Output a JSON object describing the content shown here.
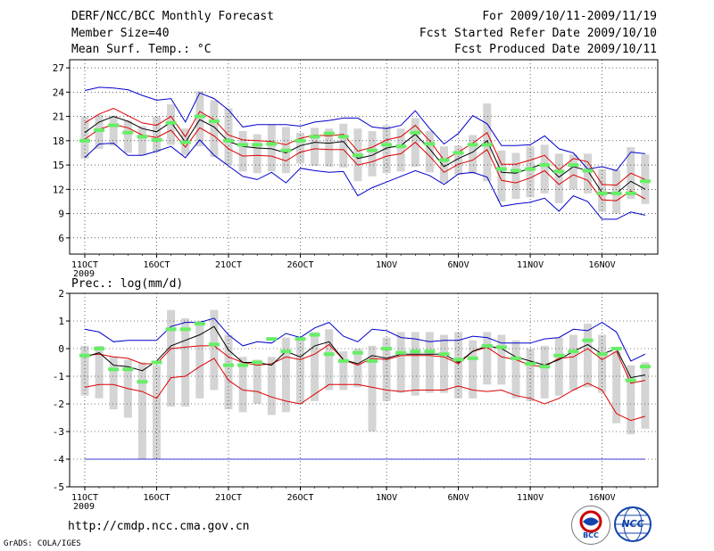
{
  "header": {
    "title": "DERF/NCC/BCC Monthly Forecast",
    "member": "Member Size=40",
    "variable": "Mean Surf. Temp.: °C",
    "period": "For 2009/10/11-2009/11/19",
    "started": "Fcst Started Refer Date 2009/10/10",
    "produced": "Fcst Produced Date 2009/10/11"
  },
  "footer": {
    "url": "http://cmdp.ncc.cma.gov.cn",
    "grads": "GrADS: COLA/IGES"
  },
  "logos": {
    "left": "BCC",
    "right": "NCC"
  },
  "colors": {
    "box": "#d4d4d4",
    "mean": "#66ee66",
    "envelope": "#0000cc",
    "percentile": "#dd0000",
    "ensemble": "#000000",
    "grid": "#000000"
  },
  "chart_data": [
    {
      "type": "line",
      "title": "Mean Surf. Temp.: °C",
      "ylim": [
        4,
        28
      ],
      "yticks": [
        6,
        9,
        12,
        15,
        18,
        21,
        24,
        27
      ],
      "x_start_day": 1,
      "x_end_day": 40,
      "xticks": [
        {
          "day": 1,
          "label": "11OCT",
          "sub": "2009"
        },
        {
          "day": 6,
          "label": "16OCT",
          "sub": ""
        },
        {
          "day": 11,
          "label": "21OCT",
          "sub": ""
        },
        {
          "day": 16,
          "label": "26OCT",
          "sub": ""
        },
        {
          "day": 22,
          "label": "1NOV",
          "sub": ""
        },
        {
          "day": 27,
          "label": "6NOV",
          "sub": ""
        },
        {
          "day": 32,
          "label": "11NOV",
          "sub": ""
        },
        {
          "day": 37,
          "label": "16NOV",
          "sub": ""
        }
      ],
      "series": [
        {
          "name": "max",
          "color": "#0000cc",
          "values": [
            24.2,
            24.6,
            24.5,
            24.3,
            23.6,
            23.0,
            23.2,
            20.3,
            23.9,
            23.2,
            21.8,
            19.7,
            20.0,
            20.0,
            20.0,
            19.8,
            20.3,
            20.5,
            20.8,
            20.8,
            19.7,
            19.5,
            19.9,
            21.7,
            19.5,
            17.6,
            18.9,
            21.1,
            20.1,
            17.4,
            17.4,
            17.5,
            18.6,
            17.0,
            16.5,
            14.5,
            14.8,
            14.3,
            16.6,
            16.4
          ]
        },
        {
          "name": "p75",
          "color": "#dd0000",
          "values": [
            20.2,
            21.3,
            22.0,
            21.1,
            20.2,
            19.9,
            21.0,
            18.5,
            21.6,
            20.6,
            18.7,
            18.1,
            18.0,
            17.9,
            17.5,
            18.3,
            18.7,
            18.6,
            18.8,
            16.7,
            17.2,
            18.1,
            18.5,
            19.9,
            18.0,
            15.6,
            16.6,
            17.7,
            19.0,
            15.1,
            15.1,
            15.6,
            16.2,
            14.4,
            15.8,
            15.4,
            12.6,
            12.5,
            14.0,
            13.2
          ]
        },
        {
          "name": "mean",
          "color": "#000000",
          "values": [
            19.0,
            20.3,
            21.0,
            20.4,
            19.5,
            19.1,
            20.3,
            17.8,
            20.6,
            19.7,
            17.9,
            17.3,
            17.1,
            17.0,
            16.5,
            17.4,
            17.8,
            17.7,
            17.9,
            15.8,
            16.2,
            17.1,
            17.4,
            18.8,
            17.0,
            14.8,
            15.8,
            16.6,
            18.0,
            14.1,
            14.0,
            14.6,
            15.2,
            13.5,
            14.8,
            14.3,
            11.6,
            11.5,
            13.0,
            12.0
          ]
        },
        {
          "name": "p25",
          "color": "#dd0000",
          "values": [
            18.2,
            19.4,
            20.0,
            19.6,
            18.7,
            18.4,
            19.3,
            17.2,
            19.6,
            18.6,
            17.0,
            16.1,
            16.2,
            16.1,
            15.5,
            16.6,
            17.0,
            16.9,
            16.9,
            15.0,
            15.4,
            16.1,
            16.4,
            17.8,
            16.1,
            14.1,
            15.1,
            15.6,
            16.9,
            13.1,
            12.8,
            13.4,
            14.3,
            12.6,
            13.8,
            13.1,
            10.7,
            10.6,
            11.8,
            10.8
          ]
        },
        {
          "name": "min",
          "color": "#0000cc",
          "values": [
            15.9,
            17.6,
            17.7,
            16.2,
            16.2,
            16.7,
            17.3,
            15.9,
            18.1,
            16.2,
            14.9,
            13.6,
            13.2,
            14.1,
            12.8,
            14.6,
            14.3,
            14.1,
            14.2,
            11.2,
            12.2,
            12.9,
            13.6,
            14.3,
            13.7,
            12.6,
            13.9,
            14.1,
            13.5,
            9.9,
            10.2,
            10.4,
            10.9,
            9.3,
            11.2,
            10.5,
            8.3,
            8.3,
            9.2,
            8.8
          ]
        }
      ],
      "mean_marks": [
        18.0,
        19.3,
        19.9,
        19.0,
        18.5,
        18.1,
        20.2,
        17.8,
        21.0,
        20.4,
        18.0,
        17.5,
        17.5,
        17.6,
        16.8,
        18.0,
        18.5,
        18.9,
        18.5,
        16.2,
        16.8,
        17.5,
        17.3,
        19.0,
        17.6,
        15.6,
        16.5,
        17.5,
        17.5,
        14.5,
        14.3,
        14.5,
        15.0,
        14.2,
        15.0,
        14.3,
        11.5,
        11.5,
        11.5,
        13.0
      ],
      "boxes": [
        {
          "day": 1,
          "lo": 15.8,
          "hi": 21.0
        },
        {
          "day": 2,
          "lo": 17.0,
          "hi": 21.2
        },
        {
          "day": 3,
          "lo": 17.4,
          "hi": 21.1
        },
        {
          "day": 4,
          "lo": 16.5,
          "hi": 20.5
        },
        {
          "day": 5,
          "lo": 16.2,
          "hi": 19.8
        },
        {
          "day": 6,
          "lo": 16.6,
          "hi": 21.0
        },
        {
          "day": 7,
          "lo": 17.5,
          "hi": 22.5
        },
        {
          "day": 8,
          "lo": 16.2,
          "hi": 19.5
        },
        {
          "day": 9,
          "lo": 17.3,
          "hi": 24.1
        },
        {
          "day": 10,
          "lo": 16.0,
          "hi": 23.0
        },
        {
          "day": 11,
          "lo": 15.0,
          "hi": 22.0
        },
        {
          "day": 12,
          "lo": 14.2,
          "hi": 19.2
        },
        {
          "day": 13,
          "lo": 14.0,
          "hi": 18.8
        },
        {
          "day": 14,
          "lo": 14.2,
          "hi": 20.0
        },
        {
          "day": 15,
          "lo": 14.0,
          "hi": 19.7
        },
        {
          "day": 16,
          "lo": 15.2,
          "hi": 19.0
        },
        {
          "day": 17,
          "lo": 14.9,
          "hi": 19.6
        },
        {
          "day": 18,
          "lo": 14.8,
          "hi": 19.5
        },
        {
          "day": 19,
          "lo": 14.7,
          "hi": 20.1
        },
        {
          "day": 20,
          "lo": 13.0,
          "hi": 19.5
        },
        {
          "day": 21,
          "lo": 13.6,
          "hi": 19.2
        },
        {
          "day": 22,
          "lo": 14.0,
          "hi": 19.9
        },
        {
          "day": 23,
          "lo": 14.2,
          "hi": 19.5
        },
        {
          "day": 24,
          "lo": 14.8,
          "hi": 20.8
        },
        {
          "day": 25,
          "lo": 14.1,
          "hi": 19.2
        },
        {
          "day": 26,
          "lo": 12.8,
          "hi": 17.3
        },
        {
          "day": 27,
          "lo": 13.8,
          "hi": 17.4
        },
        {
          "day": 28,
          "lo": 13.9,
          "hi": 18.7
        },
        {
          "day": 29,
          "lo": 13.0,
          "hi": 22.6
        },
        {
          "day": 30,
          "lo": 10.5,
          "hi": 16.8
        },
        {
          "day": 31,
          "lo": 10.8,
          "hi": 16.5
        },
        {
          "day": 32,
          "lo": 11.0,
          "hi": 17.3
        },
        {
          "day": 33,
          "lo": 11.5,
          "hi": 17.5
        },
        {
          "day": 34,
          "lo": 10.3,
          "hi": 16.4
        },
        {
          "day": 35,
          "lo": 12.0,
          "hi": 16.3
        },
        {
          "day": 36,
          "lo": 11.5,
          "hi": 16.4
        },
        {
          "day": 37,
          "lo": 9.2,
          "hi": 14.5
        },
        {
          "day": 38,
          "lo": 9.0,
          "hi": 14.4
        },
        {
          "day": 39,
          "lo": 10.8,
          "hi": 17.2
        },
        {
          "day": 40,
          "lo": 10.2,
          "hi": 16.3
        }
      ]
    },
    {
      "type": "line",
      "title": "Prec.: log(mm/d)",
      "ylim": [
        -5,
        2
      ],
      "yticks": [
        -5,
        -4,
        -3,
        -2,
        -1,
        0,
        1,
        2
      ],
      "x_start_day": 1,
      "x_end_day": 40,
      "xticks": [
        {
          "day": 1,
          "label": "11OCT",
          "sub": "2009"
        },
        {
          "day": 6,
          "label": "16OCT",
          "sub": ""
        },
        {
          "day": 11,
          "label": "21OCT",
          "sub": ""
        },
        {
          "day": 16,
          "label": "26OCT",
          "sub": ""
        },
        {
          "day": 22,
          "label": "1NOV",
          "sub": ""
        },
        {
          "day": 27,
          "label": "6NOV",
          "sub": ""
        },
        {
          "day": 32,
          "label": "11NOV",
          "sub": ""
        },
        {
          "day": 37,
          "label": "16NOV",
          "sub": ""
        }
      ],
      "series": [
        {
          "name": "max",
          "color": "#0000cc",
          "values": [
            0.7,
            0.6,
            0.25,
            0.3,
            0.3,
            0.3,
            0.8,
            0.95,
            0.95,
            1.1,
            0.5,
            0.1,
            0.25,
            0.2,
            0.55,
            0.4,
            0.75,
            0.95,
            0.45,
            0.25,
            0.7,
            0.65,
            0.4,
            0.35,
            0.25,
            0.3,
            0.3,
            0.45,
            0.4,
            0.2,
            0.2,
            0.2,
            0.35,
            0.4,
            0.7,
            0.65,
            0.95,
            0.6,
            -0.45,
            -0.2
          ]
        },
        {
          "name": "p75",
          "color": "#dd0000",
          "values": [
            -0.25,
            -0.2,
            -0.3,
            -0.35,
            -0.55,
            -0.55,
            0.0,
            0.05,
            0.1,
            0.1,
            -0.3,
            -0.5,
            -0.6,
            -0.55,
            -0.3,
            -0.4,
            -0.2,
            0.15,
            -0.4,
            -0.6,
            -0.35,
            -0.4,
            -0.25,
            -0.25,
            -0.25,
            -0.3,
            -0.55,
            -0.1,
            0.05,
            -0.3,
            -0.4,
            -0.6,
            -0.65,
            -0.35,
            -0.3,
            0.0,
            -0.4,
            -0.1,
            -1.25,
            -1.15
          ]
        },
        {
          "name": "ensemble",
          "color": "#000000",
          "values": [
            -0.3,
            -0.15,
            -0.6,
            -0.65,
            -0.8,
            -0.45,
            0.1,
            0.3,
            0.5,
            0.8,
            -0.05,
            -0.5,
            -0.5,
            -0.6,
            -0.1,
            -0.3,
            0.1,
            0.25,
            -0.4,
            -0.55,
            -0.25,
            -0.35,
            -0.2,
            -0.2,
            -0.2,
            -0.2,
            -0.5,
            -0.1,
            0.1,
            0.0,
            -0.3,
            -0.45,
            -0.6,
            -0.4,
            -0.1,
            0.15,
            -0.2,
            0.0,
            -1.05,
            -0.95
          ]
        },
        {
          "name": "p25",
          "color": "#dd0000",
          "values": [
            -1.4,
            -1.3,
            -1.3,
            -1.45,
            -1.55,
            -1.8,
            -1.05,
            -1.0,
            -0.65,
            -0.35,
            -1.15,
            -1.5,
            -1.55,
            -1.75,
            -1.9,
            -2.0,
            -1.65,
            -1.3,
            -1.3,
            -1.3,
            -1.4,
            -1.5,
            -1.55,
            -1.5,
            -1.5,
            -1.5,
            -1.35,
            -1.5,
            -1.55,
            -1.5,
            -1.7,
            -1.8,
            -2.0,
            -1.8,
            -1.5,
            -1.25,
            -1.5,
            -2.35,
            -2.6,
            -2.45
          ]
        },
        {
          "name": "min",
          "color": "#0000cc",
          "values": [
            -4.0,
            -4.0,
            -4.0,
            -4.0,
            -4.0,
            -4.0,
            -4.0,
            -4.0,
            -4.0,
            -4.0,
            -4.0,
            -4.0,
            -4.0,
            -4.0,
            -4.0,
            -4.0,
            -4.0,
            -4.0,
            -4.0,
            -4.0,
            -4.0,
            -4.0,
            -4.0,
            -4.0,
            -4.0,
            -4.0,
            -4.0,
            -4.0,
            -4.0,
            -4.0,
            -4.0,
            -4.0,
            -4.0,
            -4.0,
            -4.0,
            -4.0,
            -4.0,
            -4.0,
            -4.0,
            -4.0
          ]
        }
      ],
      "mean_marks": [
        -0.25,
        0.0,
        -0.75,
        -0.75,
        -1.2,
        -0.5,
        0.7,
        0.7,
        0.9,
        0.15,
        -0.6,
        -0.6,
        -0.5,
        0.35,
        -0.1,
        0.35,
        0.5,
        -0.2,
        -0.45,
        -0.15,
        -0.45,
        0.0,
        -0.15,
        -0.1,
        -0.1,
        -0.2,
        -0.4,
        -0.35,
        0.1,
        0.05,
        -0.35,
        -0.55,
        -0.65,
        -0.25,
        -0.1,
        0.3,
        -0.2,
        0.0,
        -1.15,
        -0.65
      ],
      "boxes": [
        {
          "day": 1,
          "lo": -1.7,
          "hi": 0.1
        },
        {
          "day": 2,
          "lo": -1.8,
          "hi": 0.1
        },
        {
          "day": 3,
          "lo": -2.2,
          "hi": -0.3
        },
        {
          "day": 4,
          "lo": -2.5,
          "hi": -0.4
        },
        {
          "day": 5,
          "lo": -4.0,
          "hi": -0.5
        },
        {
          "day": 6,
          "lo": -4.0,
          "hi": -0.6
        },
        {
          "day": 7,
          "lo": -2.1,
          "hi": 1.4
        },
        {
          "day": 8,
          "lo": -2.1,
          "hi": 1.1
        },
        {
          "day": 9,
          "lo": -1.8,
          "hi": 1.0
        },
        {
          "day": 10,
          "lo": -1.5,
          "hi": 1.4
        },
        {
          "day": 11,
          "lo": -2.2,
          "hi": 0.5
        },
        {
          "day": 12,
          "lo": -2.3,
          "hi": -0.3
        },
        {
          "day": 13,
          "lo": -2.0,
          "hi": -0.4
        },
        {
          "day": 14,
          "lo": -2.4,
          "hi": -0.3
        },
        {
          "day": 15,
          "lo": -2.3,
          "hi": 0.4
        },
        {
          "day": 16,
          "lo": -2.0,
          "hi": 0.3
        },
        {
          "day": 17,
          "lo": -1.9,
          "hi": 0.6
        },
        {
          "day": 18,
          "lo": -1.5,
          "hi": 0.7
        },
        {
          "day": 19,
          "lo": -1.5,
          "hi": -0.1
        },
        {
          "day": 20,
          "lo": -1.4,
          "hi": 0.0
        },
        {
          "day": 21,
          "lo": -3.0,
          "hi": 0.1
        },
        {
          "day": 22,
          "lo": -1.9,
          "hi": 0.4
        },
        {
          "day": 23,
          "lo": -1.6,
          "hi": 0.6
        },
        {
          "day": 24,
          "lo": -1.7,
          "hi": 0.6
        },
        {
          "day": 25,
          "lo": -1.6,
          "hi": 0.6
        },
        {
          "day": 26,
          "lo": -1.6,
          "hi": 0.5
        },
        {
          "day": 27,
          "lo": -1.8,
          "hi": 0.6
        },
        {
          "day": 28,
          "lo": -1.8,
          "hi": 0.3
        },
        {
          "day": 29,
          "lo": -1.3,
          "hi": 0.6
        },
        {
          "day": 30,
          "lo": -1.3,
          "hi": 0.5
        },
        {
          "day": 31,
          "lo": -1.8,
          "hi": 0.3
        },
        {
          "day": 32,
          "lo": -1.9,
          "hi": 0.0
        },
        {
          "day": 33,
          "lo": -1.8,
          "hi": 0.1
        },
        {
          "day": 34,
          "lo": -1.7,
          "hi": 0.4
        },
        {
          "day": 35,
          "lo": -1.5,
          "hi": 0.5
        },
        {
          "day": 36,
          "lo": -1.4,
          "hi": 0.9
        },
        {
          "day": 37,
          "lo": -1.6,
          "hi": 0.5
        },
        {
          "day": 38,
          "lo": -2.7,
          "hi": -0.1
        },
        {
          "day": 39,
          "lo": -3.1,
          "hi": -0.6
        },
        {
          "day": 40,
          "lo": -2.9,
          "hi": -0.5
        }
      ]
    }
  ]
}
